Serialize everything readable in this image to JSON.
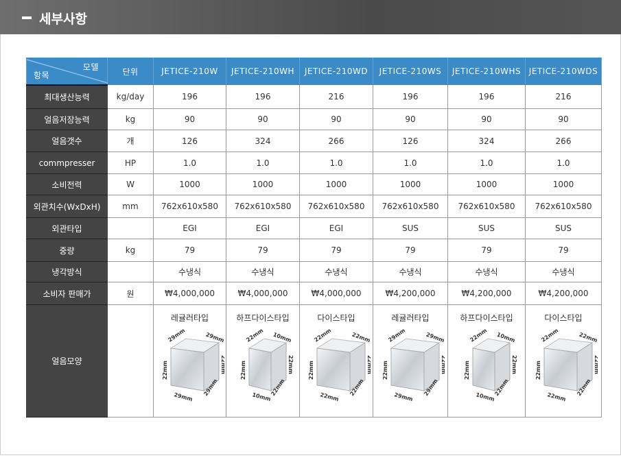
{
  "header": {
    "title": "세부사항"
  },
  "table": {
    "corner_model": "모델",
    "corner_item": "항목",
    "unit_header": "단위",
    "models": [
      "JETICE-210W",
      "JETICE-210WH",
      "JETICE-210WD",
      "JETICE-210WS",
      "JETICE-210WHS",
      "JETICE-210WDS"
    ],
    "rows": [
      {
        "label": "최대생산능력",
        "unit": "kg/day",
        "values": [
          "196",
          "196",
          "216",
          "196",
          "196",
          "216"
        ]
      },
      {
        "label": "얼음저장능력",
        "unit": "kg",
        "values": [
          "90",
          "90",
          "90",
          "90",
          "90",
          "90"
        ]
      },
      {
        "label": "얼음갯수",
        "unit": "개",
        "values": [
          "126",
          "324",
          "266",
          "126",
          "324",
          "266"
        ]
      },
      {
        "label": "commpresser",
        "unit": "HP",
        "values": [
          "1.0",
          "1.0",
          "1.0",
          "1.0",
          "1.0",
          "1.0"
        ]
      },
      {
        "label": "소비전력",
        "unit": "W",
        "values": [
          "1000",
          "1000",
          "1000",
          "1000",
          "1000",
          "1000"
        ]
      },
      {
        "label": "외관치수(WxDxH)",
        "unit": "mm",
        "values": [
          "762x610x580",
          "762x610x580",
          "762x610x580",
          "762x610x580",
          "762x610x580",
          "762x610x580"
        ]
      },
      {
        "label": "외관타입",
        "unit": "",
        "values": [
          "EGI",
          "EGI",
          "EGI",
          "SUS",
          "SUS",
          "SUS"
        ]
      },
      {
        "label": "중량",
        "unit": "kg",
        "values": [
          "79",
          "79",
          "79",
          "79",
          "79",
          "79"
        ]
      },
      {
        "label": "냉각방식",
        "unit": "",
        "values": [
          "수냉식",
          "수냉식",
          "수냉식",
          "수냉식",
          "수냉식",
          "수냉식"
        ]
      },
      {
        "label": "소비자 판매가",
        "unit": "원",
        "values": [
          "₩4,000,000",
          "₩4,000,000",
          "₩4,000,000",
          "₩4,200,000",
          "₩4,200,000",
          "₩4,200,000"
        ]
      }
    ],
    "shape_row": {
      "label": "얼음모양",
      "unit": "",
      "shapes": [
        {
          "name": "레귤러타입",
          "dims": [
            "29mm",
            "29mm",
            "22mm",
            "22mm",
            "29mm",
            "29mm"
          ]
        },
        {
          "name": "하프다이스타입",
          "dims": [
            "22mm",
            "10mm",
            "22mm",
            "22mm",
            "10mm",
            "22mm"
          ]
        },
        {
          "name": "다이스타입",
          "dims": [
            "22mm",
            "22mm",
            "22mm",
            "22mm",
            "22mm",
            "22mm"
          ]
        },
        {
          "name": "레귤러타입",
          "dims": [
            "29mm",
            "29mm",
            "22mm",
            "22mm",
            "29mm",
            "29mm"
          ]
        },
        {
          "name": "하프다이스타입",
          "dims": [
            "22mm",
            "10mm",
            "22mm",
            "22mm",
            "10mm",
            "22mm"
          ]
        },
        {
          "name": "다이스타입",
          "dims": [
            "22mm",
            "22mm",
            "22mm",
            "22mm",
            "22mm",
            "22mm"
          ]
        }
      ]
    }
  }
}
